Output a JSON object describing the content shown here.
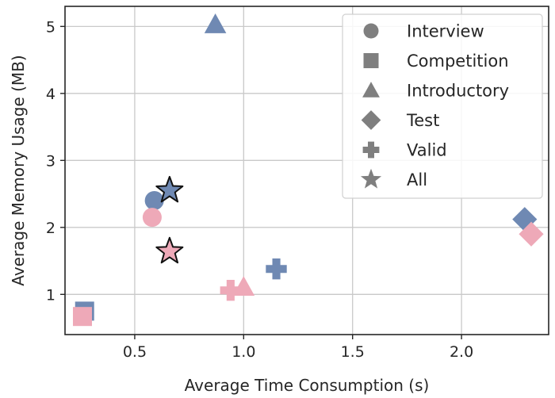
{
  "chart_data": {
    "type": "scatter",
    "title": "",
    "xlabel": "Average Time Consumption (s)",
    "ylabel": "Average Memory Usage (MB)",
    "xlim": [
      0.18,
      2.4
    ],
    "ylim": [
      0.4,
      5.3
    ],
    "xticks": [
      0.5,
      1.0,
      1.5,
      2.0
    ],
    "xtick_labels": [
      "0.5",
      "1.0",
      "1.5",
      "2.0"
    ],
    "yticks": [
      1,
      2,
      3,
      4,
      5
    ],
    "ytick_labels": [
      "1",
      "2",
      "3",
      "4",
      "5"
    ],
    "grid": true,
    "legend_position": "top-right",
    "legend": [
      {
        "label": "Interview",
        "marker": "circle"
      },
      {
        "label": "Competition",
        "marker": "square"
      },
      {
        "label": "Introductory",
        "marker": "triangle"
      },
      {
        "label": "Test",
        "marker": "diamond"
      },
      {
        "label": "Valid",
        "marker": "plus"
      },
      {
        "label": "All",
        "marker": "star"
      }
    ],
    "colors": {
      "group_a": "#6f89b3",
      "group_b": "#eea9b8",
      "legend_marker": "#7f7f7f",
      "star_edge": "#111111"
    },
    "points": [
      {
        "category": "Interview",
        "group": "group_a",
        "x": 0.59,
        "y": 2.4
      },
      {
        "category": "Interview",
        "group": "group_b",
        "x": 0.58,
        "y": 2.15
      },
      {
        "category": "Competition",
        "group": "group_a",
        "x": 0.27,
        "y": 0.75
      },
      {
        "category": "Competition",
        "group": "group_b",
        "x": 0.26,
        "y": 0.67
      },
      {
        "category": "Introductory",
        "group": "group_a",
        "x": 0.87,
        "y": 5.03
      },
      {
        "category": "Introductory",
        "group": "group_b",
        "x": 1.0,
        "y": 1.11
      },
      {
        "category": "Test",
        "group": "group_a",
        "x": 2.29,
        "y": 2.12
      },
      {
        "category": "Test",
        "group": "group_b",
        "x": 2.32,
        "y": 1.9
      },
      {
        "category": "Valid",
        "group": "group_a",
        "x": 1.15,
        "y": 1.38
      },
      {
        "category": "Valid",
        "group": "group_b",
        "x": 0.94,
        "y": 1.06
      },
      {
        "category": "All",
        "group": "group_a",
        "x": 0.66,
        "y": 2.55
      },
      {
        "category": "All",
        "group": "group_b",
        "x": 0.66,
        "y": 1.64
      }
    ]
  }
}
